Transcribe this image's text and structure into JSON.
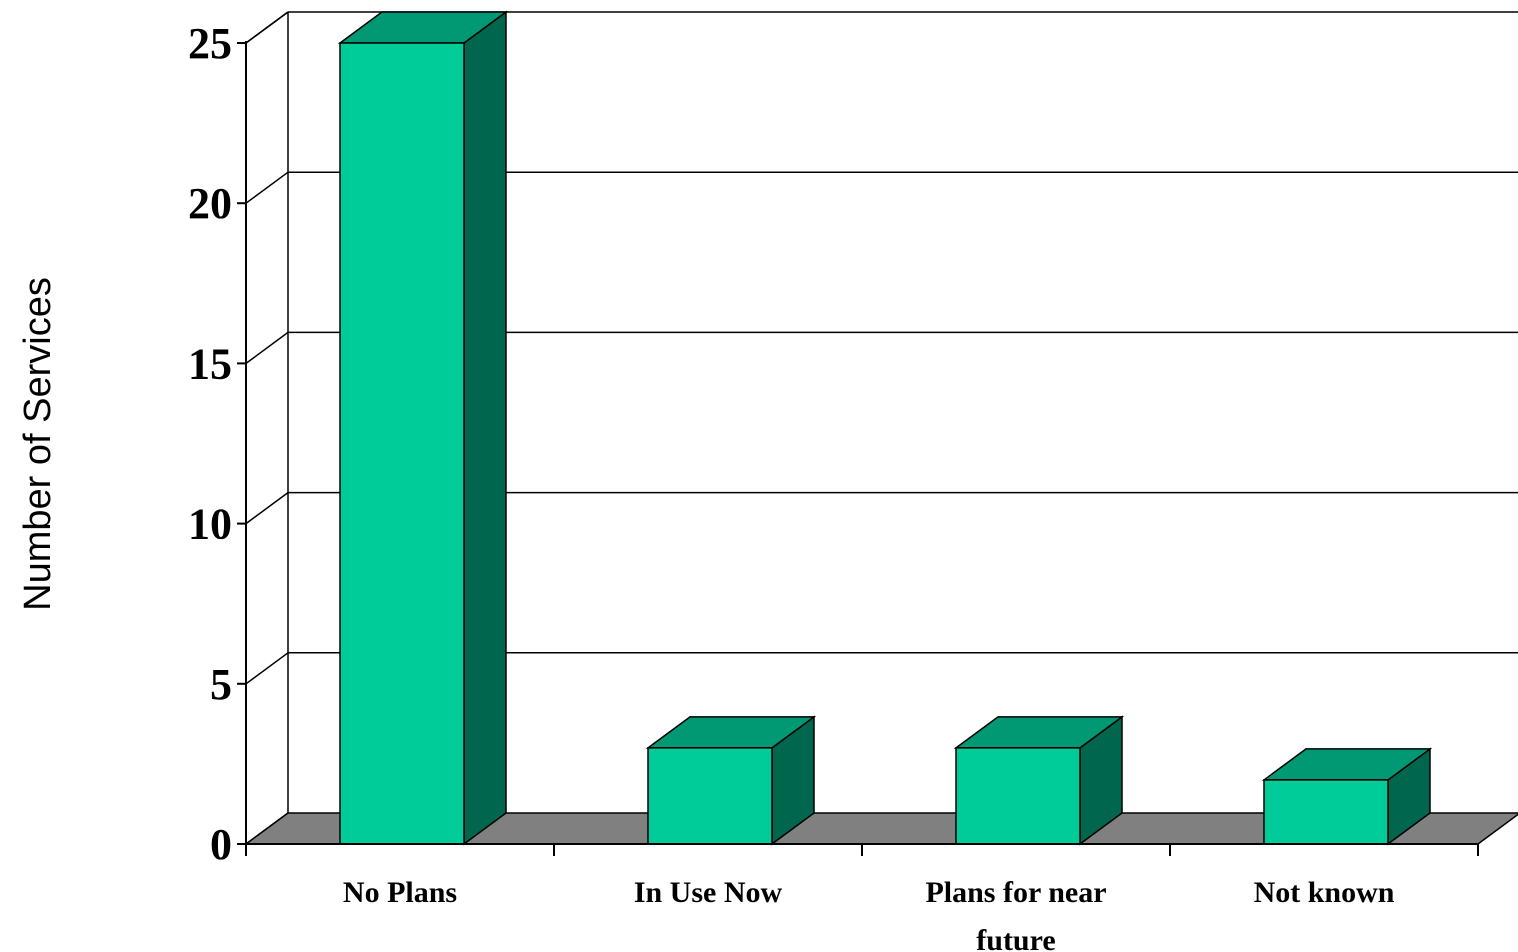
{
  "chart_data": {
    "type": "bar",
    "style": "3d",
    "title": "",
    "xlabel": "",
    "ylabel": "Number of Services",
    "ylim": [
      0,
      25
    ],
    "yticks": [
      0,
      5,
      10,
      15,
      20,
      25
    ],
    "grid": true,
    "categories": [
      [
        "No Plans"
      ],
      [
        "In Use Now"
      ],
      [
        "Plans for near",
        "future"
      ],
      [
        "Not known"
      ]
    ],
    "values": [
      25,
      3,
      3,
      2
    ],
    "colors": {
      "bar_front": "#00CC99",
      "bar_top": "#009973",
      "bar_side": "#00664D",
      "floor": "#808080"
    }
  }
}
